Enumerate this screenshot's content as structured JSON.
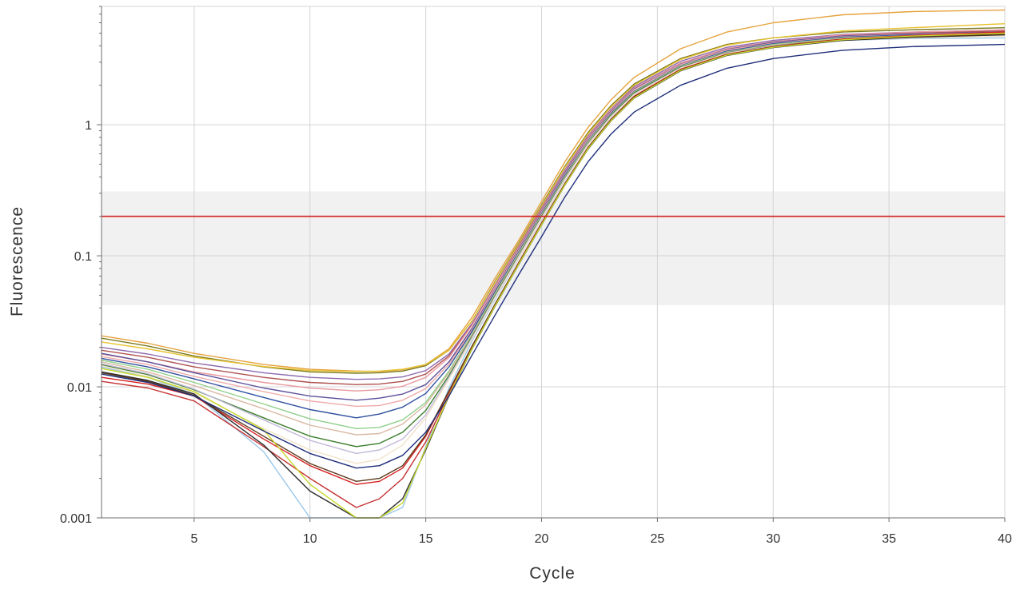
{
  "chart_data": {
    "type": "line",
    "title": "",
    "xlabel": "Cycle",
    "ylabel": "Fluorescence",
    "xlim": [
      1,
      40
    ],
    "ylim": [
      0.001,
      8
    ],
    "yscale": "log",
    "grid": true,
    "legend": "none",
    "x_ticks": [
      5,
      10,
      15,
      20,
      25,
      30,
      35,
      40
    ],
    "x_tick_labels": [
      "5",
      "10",
      "15",
      "20",
      "25",
      "30",
      "35",
      "40"
    ],
    "y_ticks": [
      0.001,
      0.01,
      0.1,
      1
    ],
    "y_tick_labels": [
      "0.001",
      "0.01",
      "0.1",
      "1"
    ],
    "threshold": {
      "value": 0.2,
      "color": "#d62020"
    },
    "threshold_band": {
      "low": 0.042,
      "high": 0.31,
      "color": "#f1f1f2"
    },
    "colors": {
      "grid": "#d4d4d4",
      "axis": "#6e6e6e",
      "band": "#f1f1f2",
      "threshold": "#d62020"
    },
    "x": [
      1,
      3,
      5,
      8,
      10,
      12,
      13,
      14,
      15,
      16,
      17,
      18,
      19,
      20,
      21,
      22,
      23,
      24,
      26,
      28,
      30,
      33,
      36,
      40
    ],
    "series": [
      {
        "color": "#e6a23c",
        "values": [
          0.0245,
          0.0215,
          0.018,
          0.0148,
          0.0136,
          0.0132,
          0.0131,
          0.0135,
          0.0148,
          0.0195,
          0.034,
          0.068,
          0.13,
          0.26,
          0.52,
          0.95,
          1.55,
          2.3,
          3.8,
          5.1,
          6.0,
          6.9,
          7.3,
          7.5
        ]
      },
      {
        "color": "#7a7a20",
        "values": [
          0.0235,
          0.0205,
          0.0172,
          0.0142,
          0.013,
          0.0127,
          0.0128,
          0.0132,
          0.0145,
          0.019,
          0.032,
          0.064,
          0.124,
          0.245,
          0.48,
          0.87,
          1.4,
          2.05,
          3.2,
          4.1,
          4.6,
          5.1,
          5.3,
          5.5
        ]
      },
      {
        "color": "#e8c230",
        "values": [
          0.022,
          0.0195,
          0.0168,
          0.0143,
          0.0133,
          0.0131,
          0.0132,
          0.0136,
          0.0148,
          0.019,
          0.032,
          0.063,
          0.122,
          0.24,
          0.47,
          0.85,
          1.37,
          2.0,
          3.15,
          4.05,
          4.6,
          5.2,
          5.5,
          5.9
        ]
      },
      {
        "color": "#8e6bb0",
        "values": [
          0.02,
          0.0178,
          0.0152,
          0.0128,
          0.0118,
          0.0114,
          0.0115,
          0.0119,
          0.0133,
          0.0178,
          0.0305,
          0.06,
          0.118,
          0.232,
          0.45,
          0.82,
          1.32,
          1.95,
          3.05,
          3.9,
          4.4,
          4.9,
          5.1,
          5.3
        ]
      },
      {
        "color": "#b05050",
        "values": [
          0.019,
          0.0168,
          0.0142,
          0.0118,
          0.0108,
          0.0104,
          0.0105,
          0.011,
          0.0125,
          0.0172,
          0.0298,
          0.059,
          0.116,
          0.228,
          0.44,
          0.8,
          1.3,
          1.9,
          2.95,
          3.8,
          4.3,
          4.8,
          5.0,
          5.2
        ]
      },
      {
        "color": "#e99aa0",
        "values": [
          0.0178,
          0.0155,
          0.013,
          0.0108,
          0.0098,
          0.0093,
          0.0095,
          0.0101,
          0.0118,
          0.0167,
          0.0295,
          0.0585,
          0.115,
          0.226,
          0.44,
          0.8,
          1.3,
          1.9,
          2.95,
          3.8,
          4.3,
          4.85,
          5.1,
          5.3
        ]
      },
      {
        "color": "#5a4f9a",
        "values": [
          0.018,
          0.0155,
          0.0128,
          0.0098,
          0.0085,
          0.0079,
          0.0082,
          0.0088,
          0.0104,
          0.0155,
          0.028,
          0.056,
          0.111,
          0.22,
          0.43,
          0.78,
          1.27,
          1.87,
          2.9,
          3.75,
          4.25,
          4.75,
          4.95,
          5.1
        ]
      },
      {
        "color": "#f0a8a8",
        "values": [
          0.017,
          0.0148,
          0.012,
          0.0092,
          0.0078,
          0.0071,
          0.0072,
          0.0079,
          0.0097,
          0.0149,
          0.0272,
          0.055,
          0.109,
          0.216,
          0.42,
          0.77,
          1.25,
          1.85,
          2.88,
          3.72,
          4.2,
          4.7,
          4.9,
          5.05
        ]
      },
      {
        "color": "#2f4f9f",
        "values": [
          0.0165,
          0.0142,
          0.0115,
          0.0083,
          0.0067,
          0.0058,
          0.0062,
          0.007,
          0.0089,
          0.0142,
          0.0265,
          0.0535,
          0.106,
          0.21,
          0.41,
          0.75,
          1.22,
          1.8,
          2.82,
          3.65,
          4.15,
          4.65,
          4.85,
          5.0
        ]
      },
      {
        "color": "#8fd08a",
        "values": [
          0.016,
          0.0136,
          0.0108,
          0.0074,
          0.0057,
          0.0048,
          0.0049,
          0.0056,
          0.0076,
          0.0132,
          0.0255,
          0.052,
          0.104,
          0.206,
          0.4,
          0.74,
          1.2,
          1.78,
          2.8,
          3.6,
          4.1,
          4.6,
          4.8,
          4.95
        ]
      },
      {
        "color": "#d9b7a0",
        "values": [
          0.0155,
          0.013,
          0.0102,
          0.0068,
          0.0051,
          0.0043,
          0.0044,
          0.0052,
          0.0073,
          0.0128,
          0.025,
          0.051,
          0.102,
          0.203,
          0.395,
          0.73,
          1.19,
          1.76,
          2.77,
          3.58,
          4.05,
          4.55,
          4.75,
          4.9
        ]
      },
      {
        "color": "#3a7d2a",
        "values": [
          0.0148,
          0.0124,
          0.0095,
          0.0058,
          0.0042,
          0.0035,
          0.0037,
          0.0045,
          0.0066,
          0.0122,
          0.0243,
          0.05,
          0.1,
          0.2,
          0.39,
          0.72,
          1.18,
          1.75,
          2.75,
          3.55,
          4.0,
          4.5,
          4.7,
          4.85
        ]
      },
      {
        "color": "#c2b9d8",
        "values": [
          0.015,
          0.0126,
          0.0096,
          0.0056,
          0.0039,
          0.0031,
          0.0033,
          0.004,
          0.0061,
          0.0118,
          0.0238,
          0.049,
          0.098,
          0.196,
          0.385,
          0.71,
          1.16,
          1.72,
          2.72,
          3.52,
          3.98,
          4.45,
          4.65,
          4.8
        ]
      },
      {
        "color": "#9cc8ea",
        "values": [
          0.0142,
          0.0118,
          0.0088,
          0.0032,
          0.0009,
          0.0008,
          0.0008,
          0.0012,
          0.0035,
          0.0098,
          0.0225,
          0.047,
          0.095,
          0.19,
          0.375,
          0.7,
          1.14,
          1.7,
          2.7,
          3.5,
          3.95,
          4.4,
          4.55,
          4.6
        ]
      },
      {
        "color": "#f1e2c8",
        "values": [
          0.0145,
          0.012,
          0.009,
          0.0048,
          0.0033,
          0.0026,
          0.0028,
          0.0036,
          0.0058,
          0.0114,
          0.0232,
          0.048,
          0.096,
          0.192,
          0.38,
          0.7,
          1.15,
          1.7,
          2.7,
          3.5,
          3.95,
          4.42,
          4.6,
          4.75
        ]
      },
      {
        "color": "#d62020",
        "values": [
          0.0118,
          0.0105,
          0.0085,
          0.004,
          0.0025,
          0.0018,
          0.0019,
          0.0024,
          0.0042,
          0.0092,
          0.0205,
          0.043,
          0.088,
          0.178,
          0.355,
          0.67,
          1.1,
          1.65,
          2.65,
          3.45,
          3.95,
          4.5,
          4.8,
          5.1
        ]
      },
      {
        "color": "#c63232",
        "values": [
          0.011,
          0.0098,
          0.0078,
          0.0035,
          0.002,
          0.0012,
          0.0014,
          0.002,
          0.0038,
          0.0088,
          0.0198,
          0.042,
          0.086,
          0.174,
          0.35,
          0.66,
          1.08,
          1.62,
          2.6,
          3.4,
          3.9,
          4.45,
          4.75,
          5.0
        ]
      },
      {
        "color": "#2b2b2b",
        "values": [
          0.013,
          0.0112,
          0.0088,
          0.0036,
          0.0016,
          0.0008,
          0.0009,
          0.0014,
          0.0033,
          0.0085,
          0.0195,
          0.0415,
          0.085,
          0.172,
          0.345,
          0.65,
          1.07,
          1.6,
          2.58,
          3.38,
          3.88,
          4.4,
          4.65,
          4.85
        ]
      },
      {
        "color": "#5c3a1e",
        "values": [
          0.0128,
          0.011,
          0.0086,
          0.0042,
          0.0026,
          0.0019,
          0.002,
          0.0025,
          0.0043,
          0.0093,
          0.0205,
          0.043,
          0.087,
          0.176,
          0.352,
          0.665,
          1.09,
          1.63,
          2.62,
          3.42,
          3.92,
          4.45,
          4.7,
          4.9
        ]
      },
      {
        "color": "#c8d82a",
        "values": [
          0.0138,
          0.0118,
          0.0092,
          0.0047,
          0.0018,
          0.0008,
          0.0008,
          0.0013,
          0.0034,
          0.0086,
          0.0196,
          0.0418,
          0.0855,
          0.173,
          0.347,
          0.655,
          1.075,
          1.61,
          2.6,
          3.4,
          3.9,
          4.45,
          4.75,
          5.0
        ]
      },
      {
        "color": "#1f2f7a",
        "values": [
          0.0125,
          0.0108,
          0.0085,
          0.0046,
          0.0031,
          0.0024,
          0.0025,
          0.003,
          0.0045,
          0.0085,
          0.0175,
          0.0355,
          0.071,
          0.14,
          0.28,
          0.52,
          0.85,
          1.25,
          2.0,
          2.7,
          3.2,
          3.7,
          3.95,
          4.1
        ]
      }
    ]
  }
}
